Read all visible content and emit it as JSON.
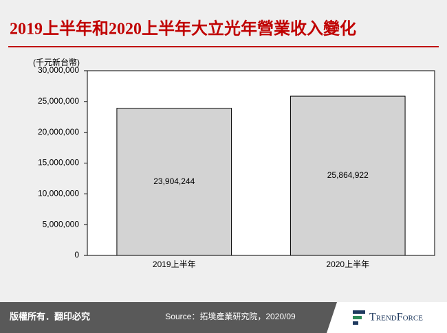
{
  "chart_data": {
    "type": "bar",
    "title": "2019上半年和2020上半年大立光年營業收入變化",
    "y_label": "(千元新台幣)",
    "categories": [
      "2019上半年",
      "2020上半年"
    ],
    "values": [
      23904244,
      25864922
    ],
    "value_labels": [
      "23,904,244",
      "25,864,922"
    ],
    "color": "#d3d3d3",
    "ylim": [
      0,
      30000000
    ],
    "yticks": [
      0,
      {
        "value": 5000000,
        "label": "5,000,000"
      },
      {
        "value": 10000000,
        "label": "10,000,000"
      },
      {
        "value": 15000000,
        "label": "15,000,000"
      },
      {
        "value": 20000000,
        "label": "20,000,000"
      },
      {
        "value": 25000000,
        "label": "25,000,000"
      },
      {
        "value": 30000000,
        "label": "30,000,000"
      }
    ],
    "grid": false
  },
  "footer": {
    "copyright": "版權所有．翻印必究",
    "source": "Source：拓墣產業研究院，2020/09",
    "logo": "TrendForce"
  }
}
